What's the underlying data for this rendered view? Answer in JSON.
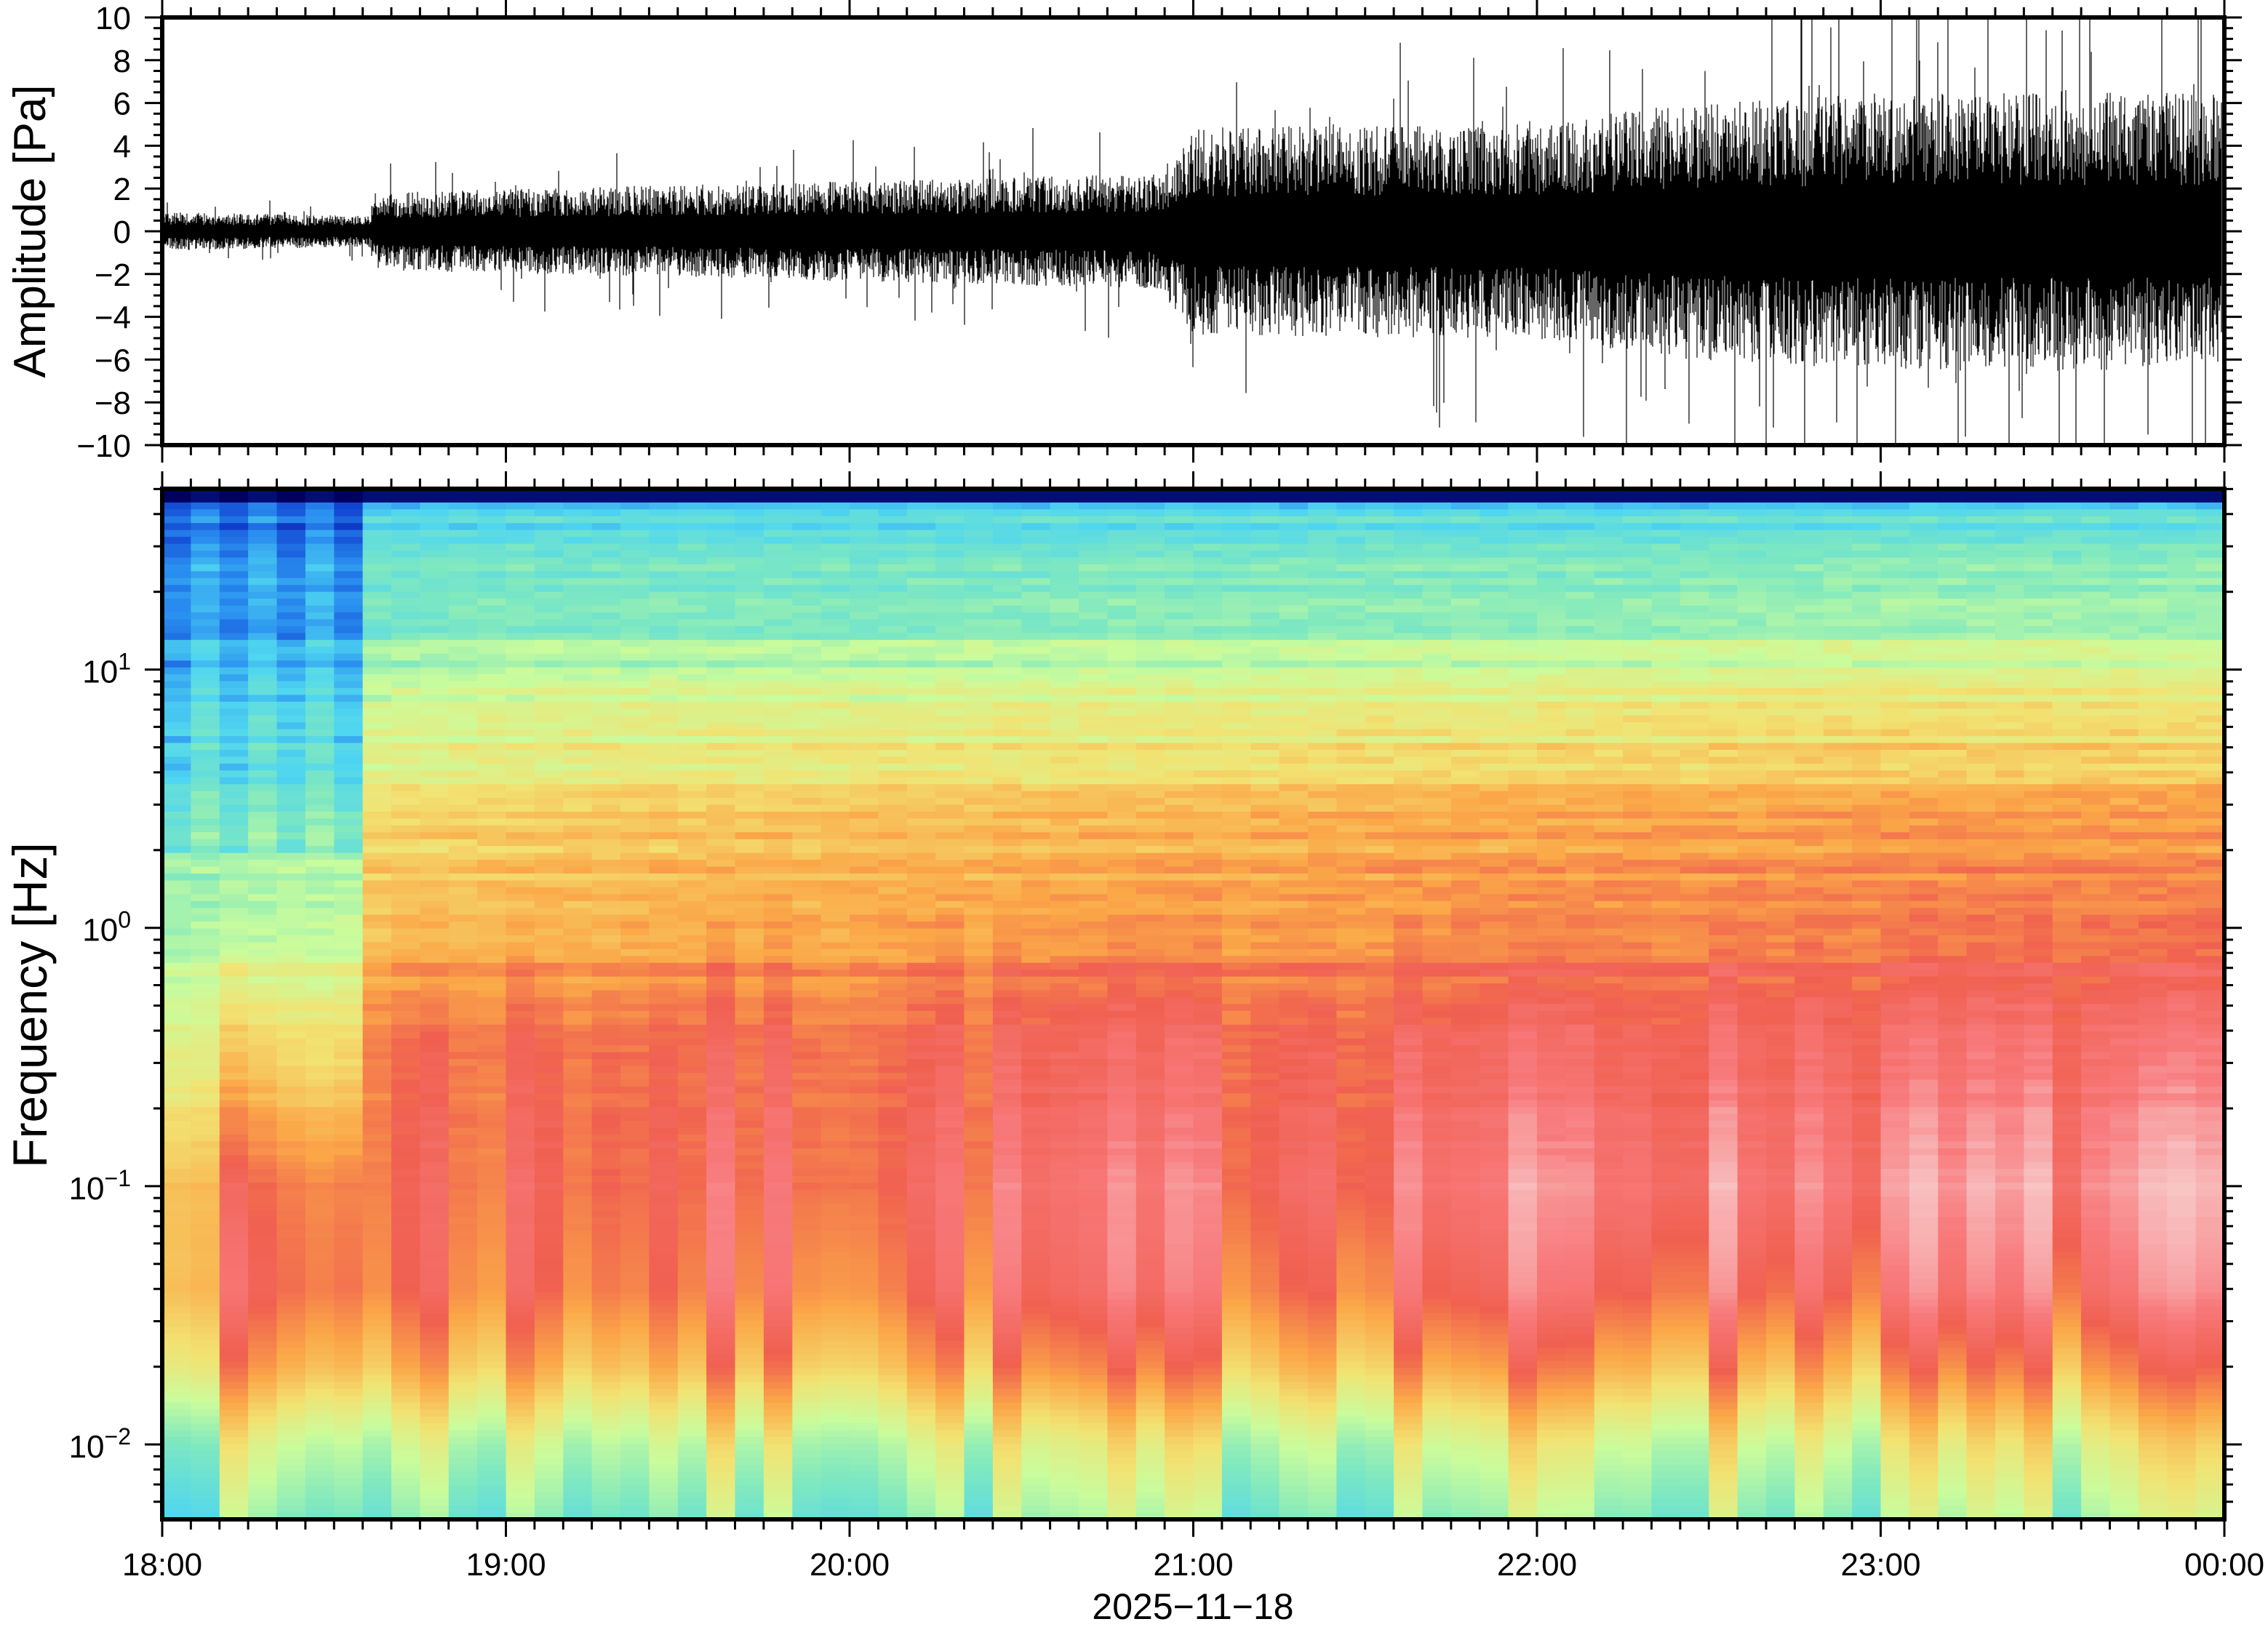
{
  "chart_data": [
    {
      "type": "line",
      "name": "waveform",
      "ylabel": "Amplitude [Pa]",
      "ylim": [
        -10,
        10
      ],
      "yticks": [
        10,
        8,
        6,
        4,
        2,
        0,
        -2,
        -4,
        -6,
        -8,
        -10
      ],
      "ytick_labels": [
        "10",
        "8",
        "6",
        "4",
        "2",
        "0",
        "−2",
        "−4",
        "−6",
        "−8",
        "−10"
      ],
      "xlim_hours": [
        0,
        6
      ],
      "envelope": {
        "description_unit": "Pa (typical amplitude vs hours after 18:00)",
        "hours": [
          0,
          0.6,
          0.62,
          1,
          2,
          2.9,
          3.0,
          4,
          4.4,
          5,
          6
        ],
        "amplitude": [
          0.5,
          0.4,
          1.0,
          1.1,
          1.3,
          1.5,
          2.7,
          2.8,
          3.3,
          3.6,
          3.6
        ]
      },
      "color": "#000000"
    },
    {
      "type": "heatmap",
      "name": "spectrogram",
      "ylabel": "Frequency [Hz]",
      "yscale": "log",
      "ylim": [
        0.005,
        50
      ],
      "yticks": [
        {
          "base": "10",
          "exp": "1",
          "value": 10
        },
        {
          "base": "10",
          "exp": "0",
          "value": 1
        },
        {
          "base": "10",
          "exp": "−1",
          "value": 0.1
        },
        {
          "base": "10",
          "exp": "−2",
          "value": 0.01
        }
      ],
      "time_hours": [
        0,
        0.6,
        0.62,
        1,
        2,
        3,
        4,
        5,
        6
      ],
      "log10_freq": [
        1.7,
        1.6,
        1.3,
        1.0,
        0.5,
        0.0,
        -0.5,
        -1.0,
        -1.4,
        -1.7,
        -2.0,
        -2.3
      ],
      "power_norm": [
        [
          0.02,
          0.02,
          0.02,
          0.02,
          0.02,
          0.02,
          0.02,
          0.02,
          0.02
        ],
        [
          0.2,
          0.2,
          0.32,
          0.33,
          0.33,
          0.34,
          0.34,
          0.35,
          0.35
        ],
        [
          0.24,
          0.25,
          0.37,
          0.38,
          0.38,
          0.4,
          0.4,
          0.42,
          0.42
        ],
        [
          0.29,
          0.3,
          0.46,
          0.48,
          0.49,
          0.5,
          0.51,
          0.53,
          0.53
        ],
        [
          0.38,
          0.4,
          0.58,
          0.6,
          0.62,
          0.64,
          0.66,
          0.68,
          0.68
        ],
        [
          0.48,
          0.52,
          0.68,
          0.7,
          0.72,
          0.74,
          0.76,
          0.78,
          0.78
        ],
        [
          0.6,
          0.62,
          0.78,
          0.79,
          0.8,
          0.82,
          0.84,
          0.86,
          0.86
        ],
        [
          0.74,
          0.76,
          0.8,
          0.81,
          0.83,
          0.86,
          0.9,
          0.92,
          0.92
        ],
        [
          0.77,
          0.78,
          0.79,
          0.79,
          0.8,
          0.82,
          0.84,
          0.85,
          0.85
        ],
        [
          0.68,
          0.68,
          0.69,
          0.69,
          0.7,
          0.71,
          0.72,
          0.72,
          0.72
        ],
        [
          0.5,
          0.5,
          0.51,
          0.51,
          0.52,
          0.53,
          0.54,
          0.55,
          0.55
        ],
        [
          0.4,
          0.4,
          0.41,
          0.41,
          0.42,
          0.43,
          0.44,
          0.45,
          0.45
        ]
      ],
      "colormap": [
        "#000060",
        "#1040d0",
        "#2a8ff0",
        "#4fd6f0",
        "#7ee8c0",
        "#cafc9c",
        "#f2e272",
        "#fba848",
        "#f06050",
        "#f87a7c",
        "#f8c4c4"
      ]
    }
  ],
  "xaxis": {
    "tick_labels": [
      "18:00",
      "19:00",
      "20:00",
      "21:00",
      "22:00",
      "23:00",
      "00:00"
    ],
    "date_label": "2025−11−18"
  }
}
